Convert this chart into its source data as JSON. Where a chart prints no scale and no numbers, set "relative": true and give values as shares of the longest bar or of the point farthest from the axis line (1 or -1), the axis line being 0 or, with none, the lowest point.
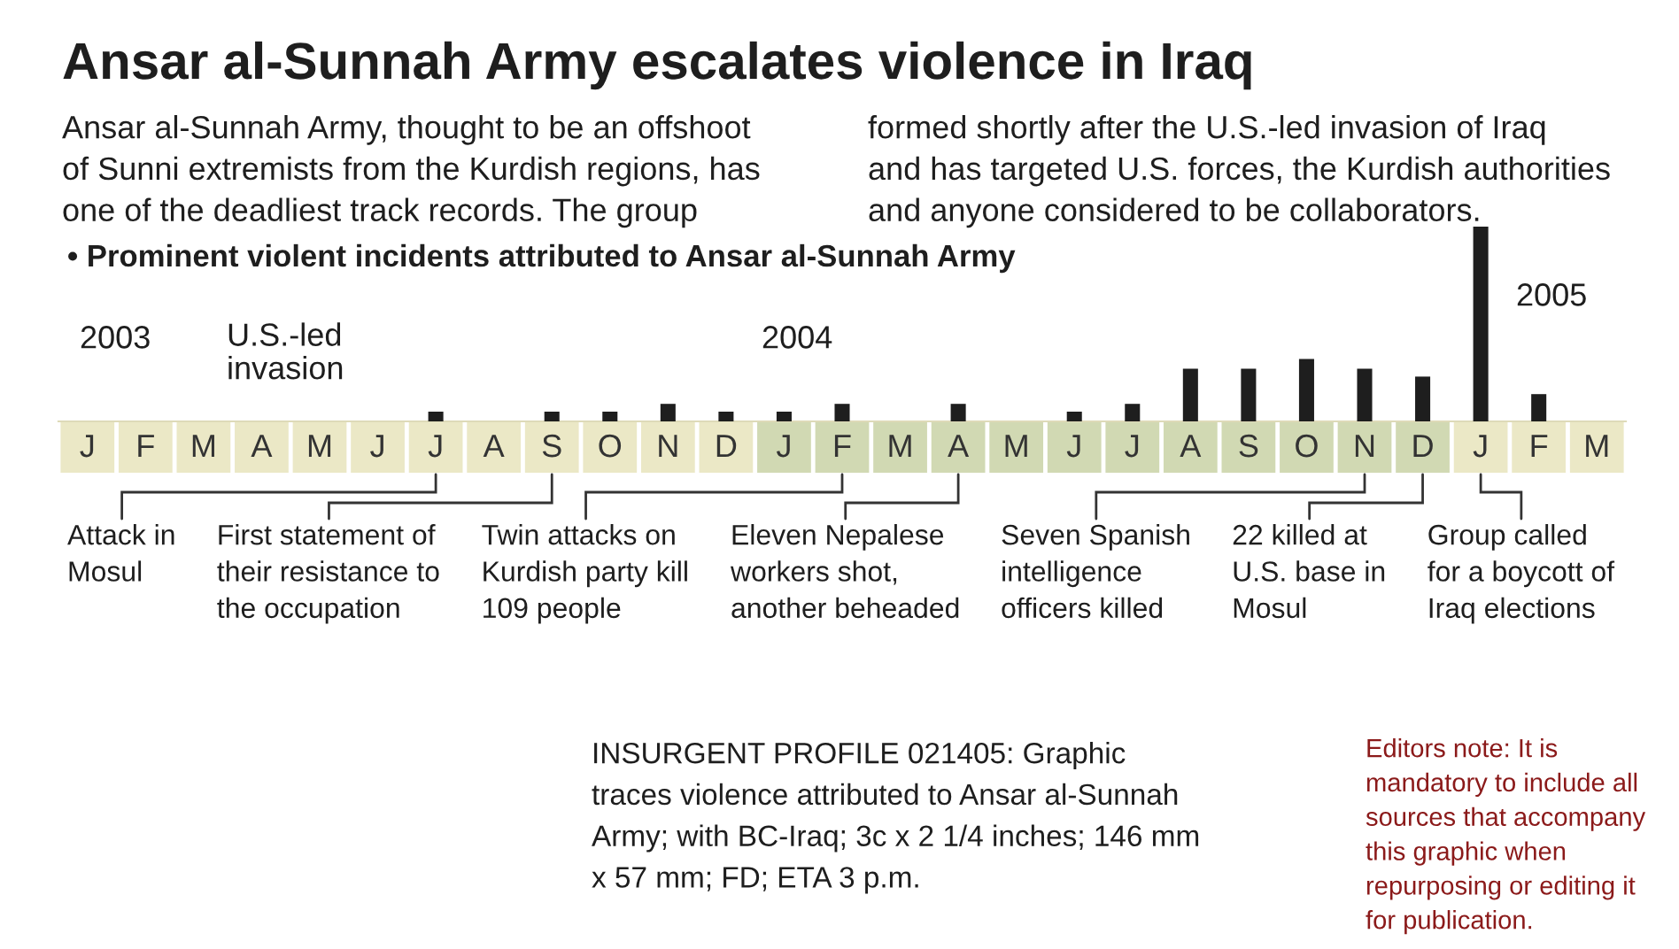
{
  "chart_data": {
    "type": "bar",
    "title": "Ansar al-Sunnah Army escalates violence in Iraq",
    "subtitle": "Ansar al-Sunnah Army, thought to be an offshoot\nof Sunni extremists from the Kurdish regions, has\none of the deadliest track records. The group\nformed shortly after the U.S.-led invasion of Iraq\nand has targeted U.S. forces, the Kurdish authorities\nand anyone considered to be collaborators.",
    "categories": [
      "J",
      "F",
      "M",
      "A",
      "M",
      "J",
      "J",
      "A",
      "S",
      "O",
      "N",
      "D",
      "J",
      "F",
      "M",
      "A",
      "M",
      "J",
      "J",
      "A",
      "S",
      "O",
      "N",
      "D",
      "J",
      "F",
      "M"
    ],
    "values": [
      0,
      0,
      0,
      0,
      0,
      0,
      0.05,
      0,
      0.05,
      0.05,
      0.09,
      0.05,
      0.05,
      0.09,
      0,
      0.09,
      0,
      0.05,
      0.09,
      0.27,
      0.27,
      0.32,
      0.27,
      0.23,
      1,
      0.14,
      0
    ],
    "color": "#1e1e1e",
    "relative": true,
    "annotations": [
      "• Prominent violent incidents attributed to Ansar al-Sunnah Army",
      "2003",
      "U.S.-led\ninvasion",
      "2004",
      "2005",
      "Attack in\nMosul",
      "First statement of\ntheir resistance to\nthe occupation",
      "Twin attacks on\nKurdish party kill\n109 people",
      "Eleven Nepalese\nworkers shot,\nanother beheaded",
      "Seven Spanish\nintelligence\nofficers killed",
      "22 killed at\nU.S. base in\nMosul",
      "Group called\nfor a boycott of\nIraq elections",
      "INSURGENT PROFILE 021405: Graphic\ntraces violence attributed to Ansar al-Sunnah\nArmy; with BC-Iraq; 3c x 2 1/4 inches; 146 mm\nx 57 mm; FD; ETA 3 p.m.",
      "Editors note: It is\nmandatory to include all\nsources that accompany\nthis graphic when\nrepurposing or editing it\nfor publication."
    ]
  }
}
